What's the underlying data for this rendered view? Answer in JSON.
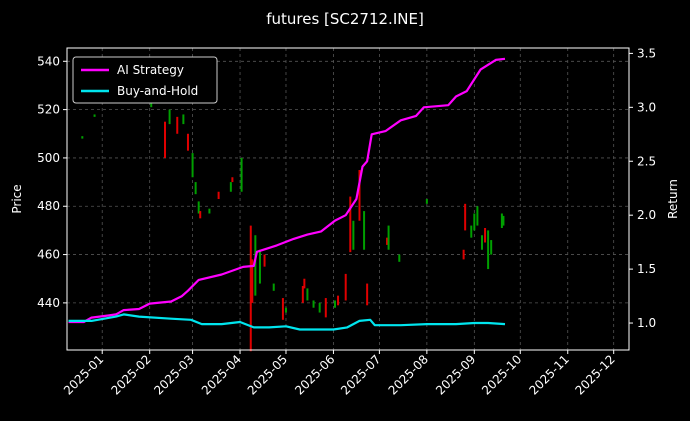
{
  "chart_data": {
    "type": "line",
    "title": "futures [SC2712.INE]",
    "xlabel": "",
    "ylabel": "Price",
    "y2label": "Return",
    "x_tick_labels": [
      "2025-01",
      "2025-02",
      "2025-03",
      "2025-04",
      "2025-05",
      "2025-06",
      "2025-07",
      "2025-08",
      "2025-09",
      "2025-10",
      "2025-11",
      "2025-12"
    ],
    "x_ticks": [
      "2025-01-01",
      "2025-02-01",
      "2025-03-01",
      "2025-04-01",
      "2025-05-01",
      "2025-06-01",
      "2025-07-01",
      "2025-08-01",
      "2025-09-01",
      "2025-10-01",
      "2025-11-01",
      "2025-12-01"
    ],
    "xlim": [
      "2024-12-09",
      "2025-12-11"
    ],
    "ylim": [
      420.5,
      545.5
    ],
    "y_ticks": [
      440,
      460,
      480,
      500,
      520,
      540
    ],
    "y2lim": [
      0.75,
      3.55
    ],
    "y2_ticks": [
      1.0,
      1.5,
      2.0,
      2.5,
      3.0,
      3.5
    ],
    "grid": true,
    "legend_position": "top-left",
    "colors": {
      "up": "#00a000",
      "down": "#e00000",
      "ai": "#ff00ff",
      "bh": "#00e5ee",
      "grid": "#555555",
      "frame": "#ffffff",
      "background": "#000000"
    },
    "series": [
      {
        "name": "AI Strategy",
        "axis": "right",
        "points": [
          [
            "2024-12-10",
            1.01
          ],
          [
            "2024-12-20",
            1.01
          ],
          [
            "2024-12-25",
            1.05
          ],
          [
            "2025-01-05",
            1.07
          ],
          [
            "2025-01-10",
            1.08
          ],
          [
            "2025-01-15",
            1.12
          ],
          [
            "2025-01-25",
            1.13
          ],
          [
            "2025-02-01",
            1.18
          ],
          [
            "2025-02-15",
            1.2
          ],
          [
            "2025-02-22",
            1.25
          ],
          [
            "2025-02-26",
            1.3
          ],
          [
            "2025-03-05",
            1.4
          ],
          [
            "2025-03-20",
            1.45
          ],
          [
            "2025-04-03",
            1.52
          ],
          [
            "2025-04-10",
            1.53
          ],
          [
            "2025-04-12",
            1.66
          ],
          [
            "2025-04-25",
            1.72
          ],
          [
            "2025-05-06",
            1.78
          ],
          [
            "2025-05-15",
            1.82
          ],
          [
            "2025-05-24",
            1.85
          ],
          [
            "2025-06-02",
            1.95
          ],
          [
            "2025-06-09",
            2.0
          ],
          [
            "2025-06-16",
            2.15
          ],
          [
            "2025-06-20",
            2.45
          ],
          [
            "2025-06-23",
            2.5
          ],
          [
            "2025-06-26",
            2.75
          ],
          [
            "2025-07-05",
            2.78
          ],
          [
            "2025-07-15",
            2.88
          ],
          [
            "2025-07-25",
            2.92
          ],
          [
            "2025-07-30",
            3.0
          ],
          [
            "2025-08-15",
            3.02
          ],
          [
            "2025-08-20",
            3.1
          ],
          [
            "2025-08-27",
            3.15
          ],
          [
            "2025-09-05",
            3.35
          ],
          [
            "2025-09-15",
            3.44
          ],
          [
            "2025-09-21",
            3.45
          ]
        ]
      },
      {
        "name": "Buy-and-Hold",
        "axis": "right",
        "points": [
          [
            "2024-12-10",
            1.02
          ],
          [
            "2024-12-25",
            1.02
          ],
          [
            "2025-01-10",
            1.06
          ],
          [
            "2025-01-15",
            1.08
          ],
          [
            "2025-01-25",
            1.06
          ],
          [
            "2025-02-15",
            1.04
          ],
          [
            "2025-02-28",
            1.03
          ],
          [
            "2025-03-07",
            0.99
          ],
          [
            "2025-03-20",
            0.99
          ],
          [
            "2025-04-01",
            1.01
          ],
          [
            "2025-04-10",
            0.96
          ],
          [
            "2025-04-20",
            0.96
          ],
          [
            "2025-05-01",
            0.97
          ],
          [
            "2025-05-10",
            0.94
          ],
          [
            "2025-05-20",
            0.94
          ],
          [
            "2025-06-01",
            0.94
          ],
          [
            "2025-06-10",
            0.96
          ],
          [
            "2025-06-18",
            1.02
          ],
          [
            "2025-06-25",
            1.03
          ],
          [
            "2025-06-28",
            0.98
          ],
          [
            "2025-07-15",
            0.98
          ],
          [
            "2025-08-01",
            0.99
          ],
          [
            "2025-08-20",
            0.99
          ],
          [
            "2025-09-01",
            1.0
          ],
          [
            "2025-09-10",
            1.0
          ],
          [
            "2025-09-21",
            0.99
          ]
        ]
      }
    ],
    "candles": [
      {
        "date": "2024-12-19",
        "low": 508,
        "high": 509,
        "dir": "up"
      },
      {
        "date": "2024-12-27",
        "low": 517,
        "high": 518,
        "dir": "up"
      },
      {
        "date": "2025-02-02",
        "low": 521,
        "high": 523,
        "dir": "up"
      },
      {
        "date": "2025-02-11",
        "low": 500,
        "high": 515,
        "dir": "down"
      },
      {
        "date": "2025-02-14",
        "low": 514,
        "high": 520,
        "dir": "up"
      },
      {
        "date": "2025-02-19",
        "low": 510,
        "high": 517,
        "dir": "down"
      },
      {
        "date": "2025-02-23",
        "low": 514,
        "high": 518,
        "dir": "up"
      },
      {
        "date": "2025-02-26",
        "low": 503,
        "high": 510,
        "dir": "down"
      },
      {
        "date": "2025-03-01",
        "low": 492,
        "high": 502,
        "dir": "up"
      },
      {
        "date": "2025-03-03",
        "low": 485,
        "high": 490,
        "dir": "up"
      },
      {
        "date": "2025-03-05",
        "low": 477,
        "high": 482,
        "dir": "up"
      },
      {
        "date": "2025-03-06",
        "low": 475,
        "high": 478,
        "dir": "down"
      },
      {
        "date": "2025-03-12",
        "low": 477,
        "high": 479,
        "dir": "up"
      },
      {
        "date": "2025-03-18",
        "low": 483,
        "high": 486,
        "dir": "down"
      },
      {
        "date": "2025-03-26",
        "low": 486,
        "high": 490,
        "dir": "up"
      },
      {
        "date": "2025-03-27",
        "low": 490,
        "high": 492,
        "dir": "down"
      },
      {
        "date": "2025-04-02",
        "low": 486,
        "high": 500,
        "dir": "up"
      },
      {
        "date": "2025-04-08",
        "low": 420,
        "high": 472,
        "dir": "down"
      },
      {
        "date": "2025-04-09",
        "low": 440,
        "high": 458,
        "dir": "down"
      },
      {
        "date": "2025-04-11",
        "low": 443,
        "high": 468,
        "dir": "up"
      },
      {
        "date": "2025-04-14",
        "low": 448,
        "high": 462,
        "dir": "up"
      },
      {
        "date": "2025-04-17",
        "low": 455,
        "high": 460,
        "dir": "down"
      },
      {
        "date": "2025-04-23",
        "low": 445,
        "high": 448,
        "dir": "up"
      },
      {
        "date": "2025-04-29",
        "low": 433,
        "high": 442,
        "dir": "down"
      },
      {
        "date": "2025-05-01",
        "low": 436,
        "high": 438,
        "dir": "up"
      },
      {
        "date": "2025-05-12",
        "low": 440,
        "high": 447,
        "dir": "down"
      },
      {
        "date": "2025-05-13",
        "low": 446,
        "high": 450,
        "dir": "down"
      },
      {
        "date": "2025-05-15",
        "low": 441,
        "high": 446,
        "dir": "up"
      },
      {
        "date": "2025-05-19",
        "low": 438,
        "high": 441,
        "dir": "up"
      },
      {
        "date": "2025-05-23",
        "low": 436,
        "high": 440,
        "dir": "up"
      },
      {
        "date": "2025-05-27",
        "low": 434,
        "high": 442,
        "dir": "down"
      },
      {
        "date": "2025-06-02",
        "low": 438,
        "high": 441,
        "dir": "up"
      },
      {
        "date": "2025-06-04",
        "low": 439,
        "high": 443,
        "dir": "down"
      },
      {
        "date": "2025-06-09",
        "low": 441,
        "high": 452,
        "dir": "down"
      },
      {
        "date": "2025-06-12",
        "low": 461,
        "high": 484,
        "dir": "down"
      },
      {
        "date": "2025-06-14",
        "low": 462,
        "high": 474,
        "dir": "up"
      },
      {
        "date": "2025-06-18",
        "low": 474,
        "high": 495,
        "dir": "down"
      },
      {
        "date": "2025-06-21",
        "low": 462,
        "high": 478,
        "dir": "up"
      },
      {
        "date": "2025-06-23",
        "low": 439,
        "high": 448,
        "dir": "down"
      },
      {
        "date": "2025-07-06",
        "low": 464,
        "high": 467,
        "dir": "down"
      },
      {
        "date": "2025-07-07",
        "low": 462,
        "high": 472,
        "dir": "up"
      },
      {
        "date": "2025-07-14",
        "low": 457,
        "high": 460,
        "dir": "up"
      },
      {
        "date": "2025-08-01",
        "low": 481,
        "high": 483,
        "dir": "up"
      },
      {
        "date": "2025-08-25",
        "low": 458,
        "high": 462,
        "dir": "down"
      },
      {
        "date": "2025-08-26",
        "low": 470,
        "high": 481,
        "dir": "down"
      },
      {
        "date": "2025-08-30",
        "low": 467,
        "high": 472,
        "dir": "up"
      },
      {
        "date": "2025-09-01",
        "low": 470,
        "high": 477,
        "dir": "up"
      },
      {
        "date": "2025-09-03",
        "low": 472,
        "high": 480,
        "dir": "up"
      },
      {
        "date": "2025-09-06",
        "low": 462,
        "high": 468,
        "dir": "up"
      },
      {
        "date": "2025-09-08",
        "low": 465,
        "high": 471,
        "dir": "down"
      },
      {
        "date": "2025-09-10",
        "low": 454,
        "high": 470,
        "dir": "up"
      },
      {
        "date": "2025-09-12",
        "low": 460,
        "high": 466,
        "dir": "up"
      },
      {
        "date": "2025-09-19",
        "low": 471,
        "high": 477,
        "dir": "up"
      },
      {
        "date": "2025-09-20",
        "low": 472,
        "high": 476,
        "dir": "up"
      }
    ]
  }
}
